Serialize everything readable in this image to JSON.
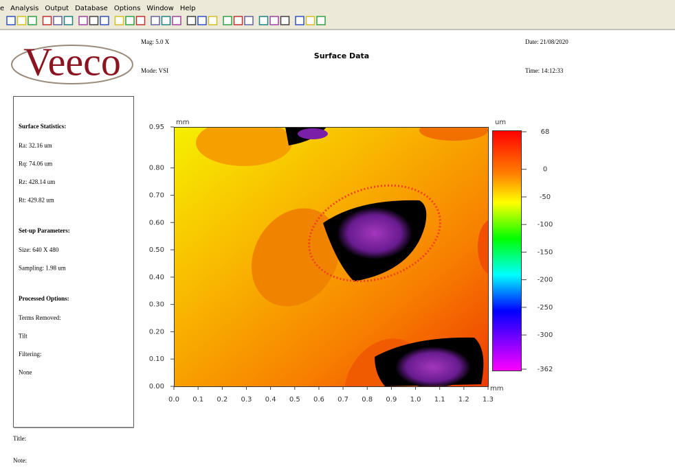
{
  "menu": [
    "e",
    "Analysis",
    "Output",
    "Database",
    "Options",
    "Window",
    "Help"
  ],
  "header": {
    "logo": "Veeco",
    "mag": "Mag: 5.0 X",
    "mode": "Mode: VSI",
    "title": "Surface Data",
    "date": "Date: 21/08/2020",
    "time": "Time: 14:12:33"
  },
  "panel": {
    "sections": [
      {
        "heading": "Surface Statistics:",
        "lines": [
          "Ra: 32.16 um",
          "Rq: 74.06 um",
          "Rz: 428.14 um",
          "Rt: 429.82 um"
        ]
      },
      {
        "heading": "Set-up Parameters:",
        "lines": [
          "Size: 640 X 480",
          "Sampling: 1.98 um"
        ]
      },
      {
        "heading": "Processed Options:",
        "lines": [
          "Terms Removed:",
          "Tilt",
          "Filtering:",
          "None"
        ]
      }
    ]
  },
  "plot": {
    "y_unit": "mm",
    "x_unit": "mm",
    "xlim": [
      0,
      1.3
    ],
    "ylim": [
      0,
      0.95
    ],
    "xticks": [
      {
        "value": 0,
        "label": "0.0"
      },
      0.1,
      0.2,
      0.3,
      0.4,
      0.5,
      0.6,
      0.7,
      0.8,
      0.9,
      {
        "value": 1,
        "label": "1.0"
      },
      1.1,
      1.2,
      1.3
    ],
    "yticks": [
      {
        "value": 0,
        "label": "0.00"
      },
      {
        "value": 0.1,
        "label": "0.10"
      },
      {
        "value": 0.2,
        "label": "0.20"
      },
      {
        "value": 0.3,
        "label": "0.30"
      },
      {
        "value": 0.4,
        "label": "0.40"
      },
      {
        "value": 0.5,
        "label": "0.50"
      },
      {
        "value": 0.6,
        "label": "0.60"
      },
      {
        "value": 0.7,
        "label": "0.70"
      },
      {
        "value": 0.8,
        "label": "0.80"
      },
      0.95
    ],
    "colorbar": {
      "unit": "um",
      "lim": [
        -362,
        68
      ],
      "ticks": [
        68,
        0,
        -50,
        -100,
        -150,
        -200,
        -250,
        -300,
        -362
      ]
    }
  },
  "footer": {
    "title": "Title:",
    "note": "Note:"
  }
}
